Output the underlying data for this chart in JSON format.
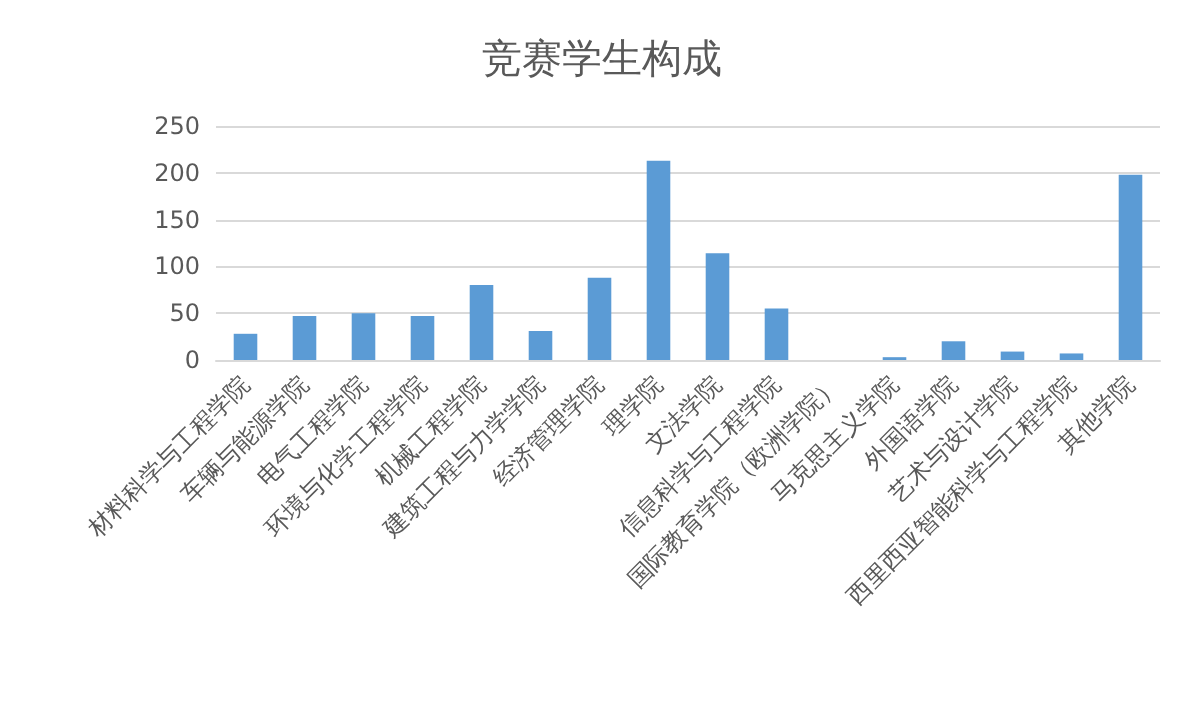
{
  "chart_data": {
    "type": "bar",
    "title": "竞赛学生构成",
    "categories": [
      "材料科学与工程学院",
      "车辆与能源学院",
      "电气工程学院",
      "环境与化学工程学院",
      "机械工程学院",
      "建筑工程与力学学院",
      "经济管理学院",
      "理学院",
      "文法学院",
      "信息科学与工程学院",
      "国际教育学院（欧洲学院）",
      "马克思主义学院",
      "外国语学院",
      "艺术与设计学院",
      "西里西亚智能科学与工程学院",
      "其他学院"
    ],
    "values": [
      28,
      47,
      50,
      47,
      80,
      31,
      88,
      213,
      114,
      55,
      0,
      3,
      20,
      9,
      7,
      198
    ],
    "color": "#5b9bd5",
    "ylim": [
      0,
      250
    ],
    "yticks": [
      0,
      50,
      100,
      150,
      200,
      250
    ],
    "grid": "y"
  }
}
